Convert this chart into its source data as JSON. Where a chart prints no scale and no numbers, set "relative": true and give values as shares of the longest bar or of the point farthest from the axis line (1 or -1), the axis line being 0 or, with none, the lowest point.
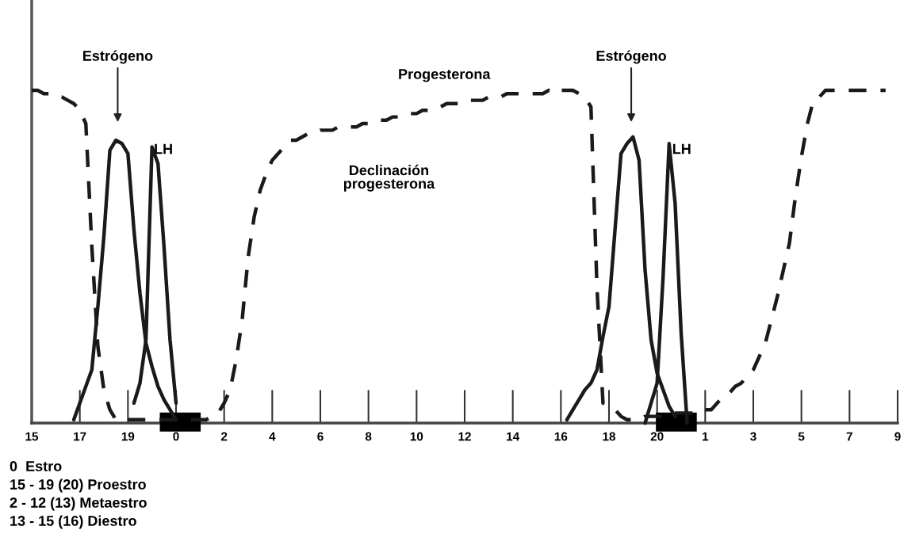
{
  "chart_data": {
    "type": "line",
    "relative": true,
    "categories": [
      "15",
      null,
      null,
      null,
      null,
      null,
      null,
      null,
      "17",
      null,
      null,
      null,
      null,
      null,
      null,
      null,
      "19",
      null,
      null,
      null,
      null,
      null,
      null,
      null,
      "0",
      null,
      null,
      null,
      null,
      null,
      null,
      null,
      "2",
      null,
      null,
      null,
      null,
      null,
      null,
      null,
      "4",
      null,
      null,
      null,
      null,
      null,
      null,
      null,
      "6",
      null,
      null,
      null,
      null,
      null,
      null,
      null,
      "8",
      null,
      null,
      null,
      null,
      null,
      null,
      null,
      "10",
      null,
      null,
      null,
      null,
      null,
      null,
      null,
      "12",
      null,
      null,
      null,
      null,
      null,
      null,
      null,
      "14",
      null,
      null,
      null,
      null,
      null,
      null,
      null,
      "16",
      null,
      null,
      null,
      null,
      null,
      null,
      null,
      "18",
      null,
      null,
      null,
      null,
      null,
      null,
      null,
      "20",
      null,
      null,
      null,
      null,
      null,
      null,
      null,
      "1",
      null,
      null,
      null,
      null,
      null,
      null,
      null,
      "3",
      null,
      null,
      null,
      null,
      null,
      null,
      null,
      "5",
      null,
      null,
      null,
      null,
      null,
      null,
      null,
      "7",
      null,
      null,
      null,
      null,
      null,
      null,
      null,
      "9"
    ],
    "marker": "none",
    "series": [
      {
        "color": "#1a1a1a",
        "line_style": "solid",
        "values": [
          null,
          null,
          null,
          null,
          null,
          null,
          null,
          0.01,
          0.06,
          0.11,
          0.16,
          0.35,
          0.56,
          0.82,
          0.85,
          0.84,
          0.81,
          0.58,
          0.39,
          0.24,
          0.17,
          0.11,
          0.07,
          0.04,
          0.01,
          null,
          null,
          null,
          null,
          null,
          null,
          null,
          null,
          null,
          null,
          null,
          null,
          null,
          null,
          null,
          null,
          null,
          null,
          null,
          null,
          null,
          null,
          null,
          null,
          null,
          null,
          null,
          null,
          null,
          null,
          null,
          null,
          null,
          null,
          null,
          null,
          null,
          null,
          null,
          null,
          null,
          null,
          null,
          null,
          null,
          null,
          null,
          null,
          null,
          null,
          null,
          null,
          null,
          null,
          null,
          null,
          null,
          null,
          null,
          null,
          null,
          null,
          null,
          null,
          0.01,
          0.04,
          0.07,
          0.1,
          0.12,
          0.16,
          0.26,
          0.35,
          0.58,
          0.81,
          0.84,
          0.86,
          0.79,
          0.46,
          0.25,
          0.15,
          0.1,
          0.05,
          0.02,
          null,
          null,
          null,
          null,
          null,
          null,
          null,
          null,
          null,
          null,
          null,
          null,
          null,
          null,
          null,
          null,
          null,
          null,
          null,
          null,
          null,
          null,
          null,
          null,
          null,
          null,
          null,
          null,
          null,
          null,
          null,
          null,
          null,
          null,
          null,
          null,
          null
        ]
      },
      {
        "color": "#1a1a1a",
        "line_style": "solid",
        "values": [
          null,
          null,
          null,
          null,
          null,
          null,
          null,
          null,
          null,
          null,
          null,
          null,
          null,
          null,
          null,
          null,
          null,
          0.06,
          0.12,
          0.25,
          0.83,
          0.78,
          0.53,
          0.25,
          0.06,
          null,
          null,
          null,
          null,
          null,
          null,
          null,
          null,
          null,
          null,
          null,
          null,
          null,
          null,
          null,
          null,
          null,
          null,
          null,
          null,
          null,
          null,
          null,
          null,
          null,
          null,
          null,
          null,
          null,
          null,
          null,
          null,
          null,
          null,
          null,
          null,
          null,
          null,
          null,
          null,
          null,
          null,
          null,
          null,
          null,
          null,
          null,
          null,
          null,
          null,
          null,
          null,
          null,
          null,
          null,
          null,
          null,
          null,
          null,
          null,
          null,
          null,
          null,
          null,
          null,
          null,
          null,
          null,
          null,
          null,
          null,
          null,
          null,
          null,
          null,
          null,
          null,
          0,
          0.06,
          0.12,
          0.44,
          0.84,
          0.66,
          0.27,
          0,
          null,
          null,
          null,
          null,
          null,
          null,
          null,
          null,
          null,
          null,
          null,
          null,
          null,
          null,
          null,
          null,
          null,
          null,
          null,
          null,
          null,
          null,
          null,
          null,
          null,
          null,
          null,
          null,
          null,
          null,
          null,
          null,
          null,
          null,
          null
        ]
      },
      {
        "color": "#1a1a1a",
        "line_style": "dashed",
        "values": [
          1,
          1,
          0.99,
          0.99,
          0.98,
          0.98,
          0.97,
          0.96,
          0.94,
          0.9,
          0.53,
          0.23,
          0.1,
          0.04,
          0.01,
          0.01,
          0.01,
          0.01,
          0.01,
          0.01,
          0.01,
          0.01,
          0.01,
          0.01,
          0.01,
          0.01,
          0.01,
          0.01,
          0.01,
          0.01,
          0.02,
          0.03,
          0.06,
          0.1,
          0.19,
          0.31,
          0.5,
          0.62,
          0.7,
          0.75,
          0.79,
          0.81,
          0.83,
          0.85,
          0.85,
          0.86,
          0.87,
          0.87,
          0.88,
          0.88,
          0.88,
          0.89,
          0.89,
          0.89,
          0.89,
          0.9,
          0.9,
          0.9,
          0.91,
          0.91,
          0.92,
          0.92,
          0.93,
          0.93,
          0.93,
          0.94,
          0.94,
          0.95,
          0.95,
          0.96,
          0.96,
          0.96,
          0.97,
          0.97,
          0.97,
          0.97,
          0.98,
          0.98,
          0.98,
          0.99,
          0.99,
          0.99,
          0.99,
          0.99,
          0.99,
          0.99,
          1,
          0.99,
          1,
          1,
          1,
          0.99,
          0.98,
          0.95,
          0.41,
          0.06,
          0.05,
          0.04,
          0.02,
          0.01,
          0.01,
          0.01,
          0.02,
          0.02,
          0.02,
          0.02,
          0.03,
          0.03,
          0.03,
          0.03,
          0.03,
          0.04,
          0.04,
          0.04,
          0.06,
          0.08,
          0.09,
          0.11,
          0.12,
          0.14,
          0.16,
          0.2,
          0.24,
          0.31,
          0.38,
          0.46,
          0.54,
          0.68,
          0.8,
          0.9,
          0.97,
          0.98,
          1,
          1,
          1,
          1,
          1,
          1,
          1,
          1,
          1,
          1,
          1,
          null,
          null
        ]
      }
    ],
    "annotations": [
      "Estrógeno",
      "LH",
      "Progesterona",
      "Declinación\nprogesterona",
      "Estrógeno",
      "LH",
      "0  Estro",
      "15 - 19 (20) Proestro",
      "2 - 12 (13) Metaestro",
      "13 - 15 (16) Diestro"
    ]
  }
}
